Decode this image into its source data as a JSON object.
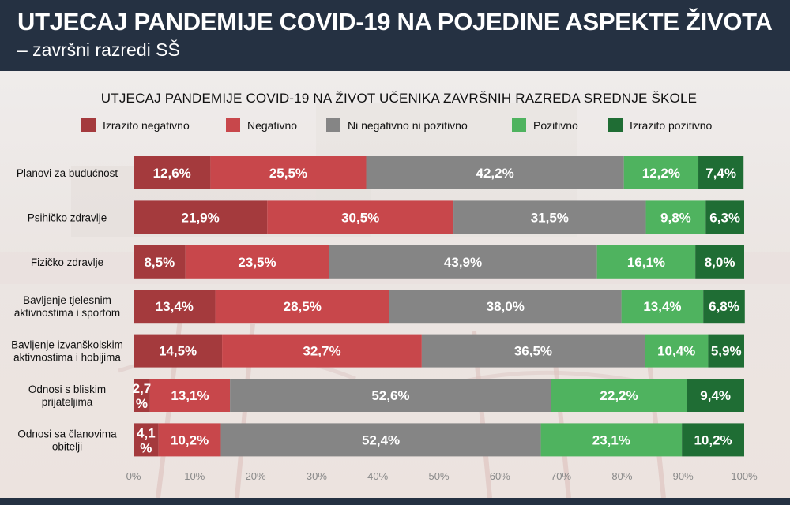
{
  "header": {
    "title": "UTJECAJ PANDEMIJE COVID-19 NA POJEDINE ASPEKTE ŽIVOTA",
    "subtitle": "– završni razredi SŠ"
  },
  "chart_data": {
    "type": "bar",
    "orientation": "horizontal",
    "stacked": true,
    "title": "UTJECAJ PANDEMIJE COVID-19 NA ŽIVOT UČENIKA ZAVRŠNIH RAZREDA SREDNJE ŠKOLE",
    "categories": [
      [
        "Planovi za budućnost"
      ],
      [
        "Psihičko zdravlje"
      ],
      [
        "Fizičko zdravlje"
      ],
      [
        "Bavljenje tjelesnim",
        "aktivnostima i sportom"
      ],
      [
        "Bavljenje izvanškolskim",
        "aktivnostima i hobijima"
      ],
      [
        "Odnosi s bliskim",
        "prijateljima"
      ],
      [
        "Odnosi sa članovima",
        "obitelji"
      ]
    ],
    "series": [
      {
        "name": "Izrazito negativno",
        "color": "#a43a3d",
        "values": [
          12.6,
          21.9,
          8.5,
          13.4,
          14.5,
          2.7,
          4.1
        ],
        "labels": [
          [
            "12,6%"
          ],
          [
            "21,9%"
          ],
          [
            "8,5%"
          ],
          [
            "13,4%"
          ],
          [
            "14,5%"
          ],
          [
            "2,7",
            "%"
          ],
          [
            "4,1",
            "%"
          ]
        ]
      },
      {
        "name": "Negativno",
        "color": "#c8474b",
        "values": [
          25.5,
          30.5,
          23.5,
          28.5,
          32.7,
          13.1,
          10.2
        ],
        "labels": [
          [
            "25,5%"
          ],
          [
            "30,5%"
          ],
          [
            "23,5%"
          ],
          [
            "28,5%"
          ],
          [
            "32,7%"
          ],
          [
            "13,1%"
          ],
          [
            "10,2%"
          ]
        ]
      },
      {
        "name": "Ni negativno ni pozitivno",
        "color": "#858585",
        "values": [
          42.2,
          31.5,
          43.9,
          38.0,
          36.5,
          52.6,
          52.4
        ],
        "labels": [
          [
            "42,2%"
          ],
          [
            "31,5%"
          ],
          [
            "43,9%"
          ],
          [
            "38,0%"
          ],
          [
            "36,5%"
          ],
          [
            "52,6%"
          ],
          [
            "52,4%"
          ]
        ]
      },
      {
        "name": "Pozitivno",
        "color": "#4fb35f",
        "values": [
          12.2,
          9.8,
          16.1,
          13.4,
          10.4,
          22.2,
          23.1
        ],
        "labels": [
          [
            "12,2%"
          ],
          [
            "9,8%"
          ],
          [
            "16,1%"
          ],
          [
            "13,4%"
          ],
          [
            "10,4%"
          ],
          [
            "22,2%"
          ],
          [
            "23,1%"
          ]
        ]
      },
      {
        "name": "Izrazito pozitivno",
        "color": "#1f6d34",
        "values": [
          7.4,
          6.3,
          8.0,
          6.8,
          5.9,
          9.4,
          10.2
        ],
        "labels": [
          [
            "7,4%"
          ],
          [
            "6,3%"
          ],
          [
            "8,0%"
          ],
          [
            "6,8%"
          ],
          [
            "5,9%"
          ],
          [
            "9,4%"
          ],
          [
            "10,2%"
          ]
        ]
      }
    ],
    "xlim": [
      0,
      100
    ],
    "xticks": [
      "0%",
      "10%",
      "20%",
      "30%",
      "40%",
      "50%",
      "60%",
      "70%",
      "80%",
      "90%",
      "100%"
    ],
    "legend_position": "top",
    "grid": false
  }
}
